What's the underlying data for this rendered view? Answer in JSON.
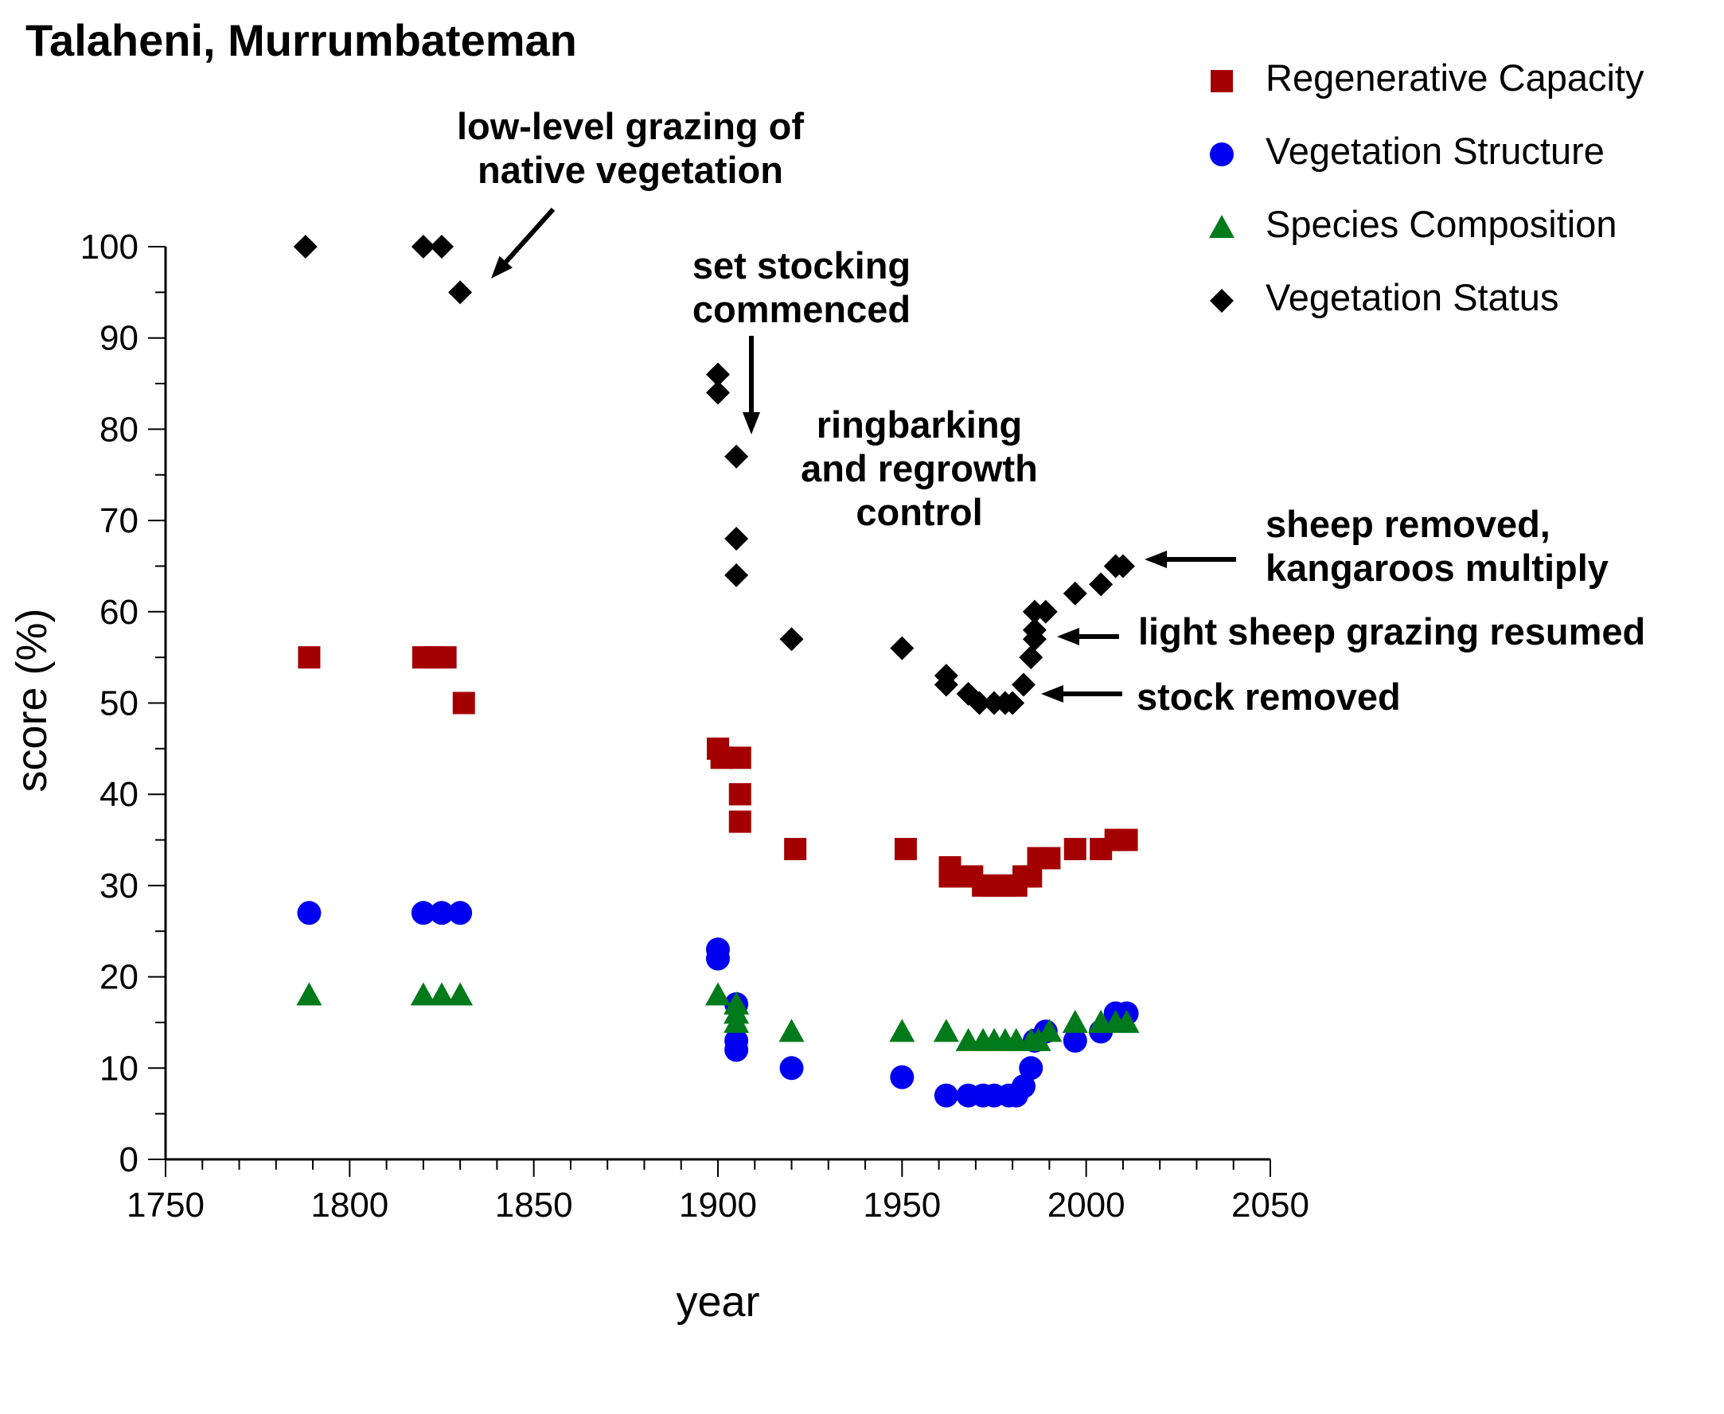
{
  "chart_data": {
    "type": "scatter",
    "title": "Talaheni, Murrumbateman",
    "xlabel": "year",
    "ylabel": "score (%)",
    "xlim": [
      1750,
      2050
    ],
    "ylim": [
      0,
      100
    ],
    "xticks": [
      1750,
      1800,
      1850,
      1900,
      1950,
      2000,
      2050
    ],
    "yticks": [
      0,
      10,
      20,
      30,
      40,
      50,
      60,
      70,
      80,
      90,
      100
    ],
    "grid": false,
    "legend_position": "top-right",
    "series": [
      {
        "name": "Regenerative Capacity",
        "marker": "square",
        "color": "#a50000",
        "points": [
          [
            1789,
            55
          ],
          [
            1820,
            55
          ],
          [
            1823,
            55
          ],
          [
            1826,
            55
          ],
          [
            1831,
            50
          ],
          [
            1900,
            45
          ],
          [
            1901,
            44
          ],
          [
            1906,
            44
          ],
          [
            1906,
            40
          ],
          [
            1906,
            37
          ],
          [
            1921,
            34
          ],
          [
            1951,
            34
          ],
          [
            1963,
            32
          ],
          [
            1963,
            31
          ],
          [
            1969,
            31
          ],
          [
            1972,
            30
          ],
          [
            1975,
            30
          ],
          [
            1978,
            30
          ],
          [
            1981,
            30
          ],
          [
            1983,
            31
          ],
          [
            1985,
            31
          ],
          [
            1987,
            33
          ],
          [
            1990,
            33
          ],
          [
            1997,
            34
          ],
          [
            2004,
            34
          ],
          [
            2008,
            35
          ],
          [
            2011,
            35
          ]
        ]
      },
      {
        "name": "Vegetation Structure",
        "marker": "circle",
        "color": "#0000f0",
        "points": [
          [
            1789,
            27
          ],
          [
            1820,
            27
          ],
          [
            1825,
            27
          ],
          [
            1830,
            27
          ],
          [
            1900,
            23
          ],
          [
            1900,
            22
          ],
          [
            1905,
            17
          ],
          [
            1905,
            13
          ],
          [
            1905,
            12
          ],
          [
            1920,
            10
          ],
          [
            1950,
            9
          ],
          [
            1962,
            7
          ],
          [
            1968,
            7
          ],
          [
            1972,
            7
          ],
          [
            1975,
            7
          ],
          [
            1979,
            7
          ],
          [
            1981,
            7
          ],
          [
            1983,
            8
          ],
          [
            1985,
            10
          ],
          [
            1986,
            13
          ],
          [
            1989,
            14
          ],
          [
            1997,
            13
          ],
          [
            2004,
            14
          ],
          [
            2008,
            16
          ],
          [
            2011,
            16
          ]
        ]
      },
      {
        "name": "Species Composition",
        "marker": "triangle",
        "color": "#007a1a",
        "points": [
          [
            1789,
            18
          ],
          [
            1820,
            18
          ],
          [
            1825,
            18
          ],
          [
            1830,
            18
          ],
          [
            1900,
            18
          ],
          [
            1905,
            17
          ],
          [
            1905,
            16
          ],
          [
            1905,
            15
          ],
          [
            1920,
            14
          ],
          [
            1950,
            14
          ],
          [
            1962,
            14
          ],
          [
            1968,
            13
          ],
          [
            1972,
            13
          ],
          [
            1975,
            13
          ],
          [
            1978,
            13
          ],
          [
            1981,
            13
          ],
          [
            1985,
            13
          ],
          [
            1987,
            13
          ],
          [
            1990,
            14
          ],
          [
            1997,
            15
          ],
          [
            2004,
            15
          ],
          [
            2008,
            15
          ],
          [
            2011,
            15
          ]
        ]
      },
      {
        "name": "Vegetation Status",
        "marker": "diamond",
        "color": "#000000",
        "points": [
          [
            1788,
            100
          ],
          [
            1820,
            100
          ],
          [
            1825,
            100
          ],
          [
            1830,
            95
          ],
          [
            1900,
            86
          ],
          [
            1900,
            84
          ],
          [
            1905,
            77
          ],
          [
            1905,
            68
          ],
          [
            1905,
            64
          ],
          [
            1920,
            57
          ],
          [
            1950,
            56
          ],
          [
            1962,
            53
          ],
          [
            1962,
            52
          ],
          [
            1968,
            51
          ],
          [
            1971,
            50
          ],
          [
            1975,
            50
          ],
          [
            1978,
            50
          ],
          [
            1980,
            50
          ],
          [
            1983,
            52
          ],
          [
            1985,
            55
          ],
          [
            1986,
            57
          ],
          [
            1986,
            58
          ],
          [
            1986,
            60
          ],
          [
            1989,
            60
          ],
          [
            1997,
            62
          ],
          [
            2004,
            63
          ],
          [
            2008,
            65
          ],
          [
            2010,
            65
          ]
        ]
      }
    ],
    "annotations": [
      {
        "lines": [
          "low-level grazing of",
          "native vegetation"
        ]
      },
      {
        "lines": [
          "set stocking",
          "commenced"
        ]
      },
      {
        "lines": [
          "ringbarking",
          "and regrowth",
          "control"
        ]
      },
      {
        "lines": [
          "sheep removed,",
          "kangaroos multiply"
        ]
      },
      {
        "lines": [
          "light sheep grazing resumed"
        ]
      },
      {
        "lines": [
          "stock removed"
        ]
      }
    ]
  }
}
